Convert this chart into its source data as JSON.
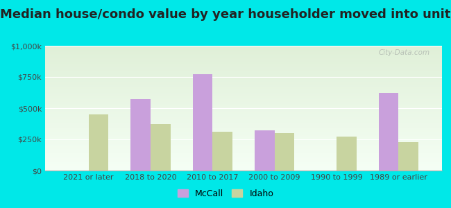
{
  "title": "Median house/condo value by year householder moved into unit",
  "categories": [
    "2021 or later",
    "2018 to 2020",
    "2010 to 2017",
    "2000 to 2009",
    "1990 to 1999",
    "1989 or earlier"
  ],
  "mccall_values": [
    null,
    575000,
    775000,
    325000,
    null,
    625000
  ],
  "idaho_values": [
    450000,
    375000,
    310000,
    300000,
    275000,
    230000
  ],
  "mccall_color": "#c9a0dc",
  "idaho_color": "#c8d4a0",
  "background_color": "#00e8e8",
  "grad_top": "#e0f0d8",
  "grad_bottom": "#f5fff5",
  "ylim": [
    0,
    1000000
  ],
  "yticks": [
    0,
    250000,
    500000,
    750000,
    1000000
  ],
  "ytick_labels": [
    "$0",
    "$250k",
    "$500k",
    "$750k",
    "$1,000k"
  ],
  "bar_width": 0.32,
  "legend_labels": [
    "McCall",
    "Idaho"
  ],
  "watermark": "City-Data.com",
  "title_fontsize": 13,
  "tick_fontsize": 8,
  "legend_fontsize": 9
}
